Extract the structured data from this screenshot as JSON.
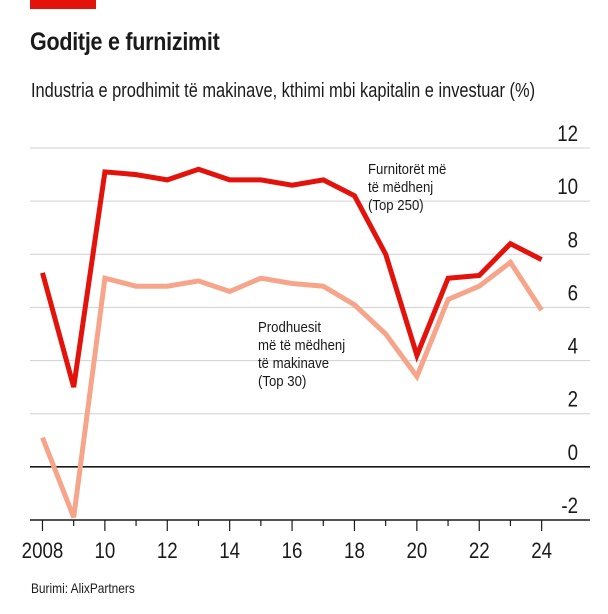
{
  "header": {
    "title": "Goditje e furnizimit",
    "subtitle": "Industria e prodhimit të makinave, kthimi mbi kapitalin e investuar (%)"
  },
  "footer": {
    "source": "Burimi: AlixPartners"
  },
  "colors": {
    "accent": "#e3120b",
    "series_top250": "#e3120b",
    "series_top30": "#f7a58a",
    "gridline": "#d0d0d0",
    "zero_line": "#1a1a1a"
  },
  "chart_data": {
    "type": "line",
    "title": "Goditje e furnizimit",
    "subtitle": "Industria e prodhimit të makinave, kthimi mbi kapitalin e investuar (%)",
    "xlabel": "",
    "ylabel": "",
    "x": [
      2008,
      2009,
      2010,
      2011,
      2012,
      2013,
      2014,
      2015,
      2016,
      2017,
      2018,
      2019,
      2020,
      2021,
      2022,
      2023,
      2024
    ],
    "x_ticks": [
      2008,
      2010,
      2012,
      2014,
      2016,
      2018,
      2020,
      2022,
      2024
    ],
    "x_tick_labels": [
      "2008",
      "10",
      "12",
      "14",
      "16",
      "18",
      "20",
      "22",
      "24"
    ],
    "ylim": [
      -2,
      12
    ],
    "y_ticks": [
      -2,
      0,
      2,
      4,
      6,
      8,
      10,
      12
    ],
    "y_tick_labels": [
      "-2",
      "0",
      "2",
      "4",
      "6",
      "8",
      "10",
      "12"
    ],
    "y_axis_side": "right",
    "grid": true,
    "series": [
      {
        "name": "Furnitorët më të mëdhenj (Top 250)",
        "label_lines": [
          "Furnitorët më",
          "të mëdhenj",
          "(Top 250)"
        ],
        "color": "#e3120b",
        "values": [
          7.3,
          3.0,
          11.1,
          11.0,
          10.8,
          11.2,
          10.8,
          10.8,
          10.6,
          10.8,
          10.2,
          8.0,
          4.2,
          7.1,
          7.2,
          8.4,
          7.8
        ]
      },
      {
        "name": "Prodhuesit më të mëdhenj të makinave (Top 30)",
        "label_lines": [
          "Prodhuesit",
          "më të mëdhenj",
          "të makinave",
          "(Top 30)"
        ],
        "color": "#f7a58a",
        "values": [
          1.1,
          -1.9,
          7.1,
          6.8,
          6.8,
          7.0,
          6.6,
          7.1,
          6.9,
          6.8,
          6.1,
          5.0,
          3.4,
          6.3,
          6.8,
          7.7,
          5.9
        ]
      }
    ]
  }
}
